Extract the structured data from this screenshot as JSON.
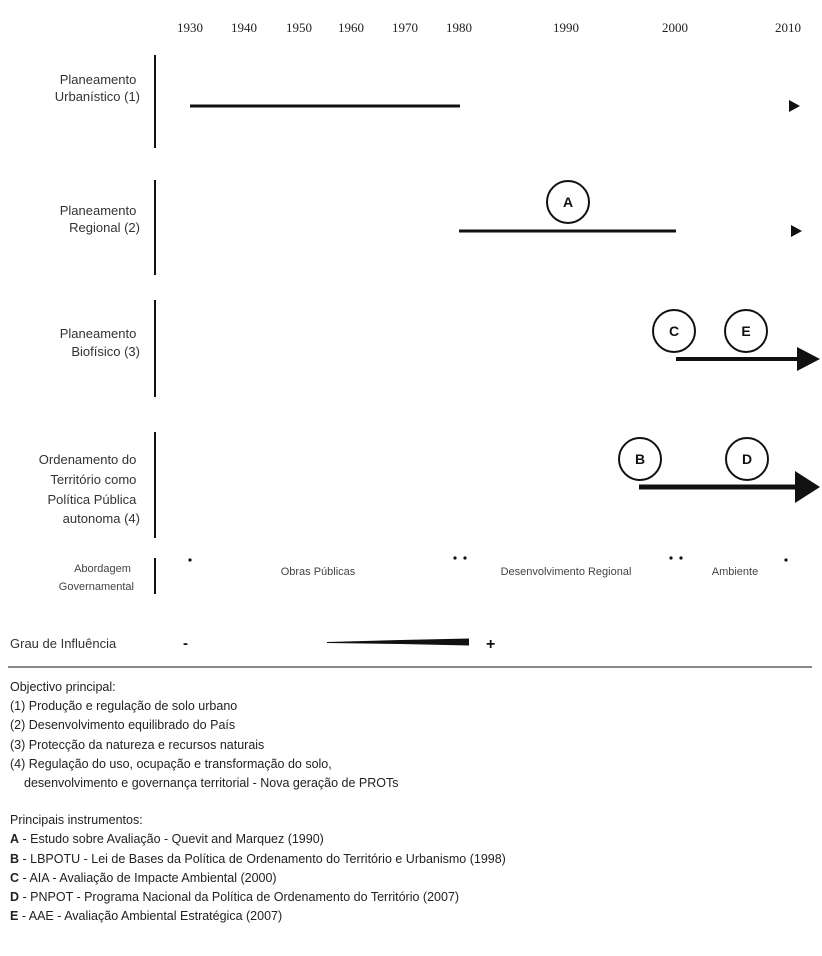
{
  "years": [
    "1930",
    "1940",
    "1950",
    "1960",
    "1970",
    "1980",
    "1990",
    "2000",
    "2010"
  ],
  "rows": [
    {
      "label_lines": [
        "Planeamento",
        "Urbanístico (1)"
      ]
    },
    {
      "label_lines": [
        "Planeamento",
        "Regional (2)"
      ]
    },
    {
      "label_lines": [
        "Planeamento",
        "Biofísico (3)"
      ]
    },
    {
      "label_lines": [
        "Ordenamento do",
        "Território como",
        "Política Pública",
        "autonoma (4)"
      ]
    }
  ],
  "circles": [
    "A",
    "C",
    "E",
    "B",
    "D"
  ],
  "governance": {
    "label_lines": [
      "Abordagem",
      "Governamental"
    ],
    "periods": [
      "Obras Públicas",
      "Desenvolvimento Regional",
      "Ambiente"
    ]
  },
  "influence": {
    "label": "Grau de Influência",
    "minus": "-",
    "plus": "+"
  },
  "objectives": {
    "title": "Objectivo principal:",
    "items": [
      "(1) Produção e regulação de solo urbano",
      "(2) Desenvolvimento equilibrado do País",
      "(3) Protecção da natureza e recursos naturais",
      "(4) Regulação do uso, ocupação e transformação do solo,"
    ],
    "continuation": "desenvolvimento e governança territorial - Nova geração de PROTs"
  },
  "instruments": {
    "title": "Principais instrumentos:",
    "items": [
      {
        "key": "A",
        "text": " - Estudo sobre Avaliação - Quevit and Marquez (1990)"
      },
      {
        "key": "B",
        "text": " - LBPOTU - Lei de Bases da Política de Ordenamento do Território e Urbanismo (1998)"
      },
      {
        "key": "C",
        "text": " - AIA - Avaliação de Impacte Ambiental (2000)"
      },
      {
        "key": "D",
        "text": " - PNPOT - Programa Nacional da Política de Ordenamento do Território (2007)"
      },
      {
        "key": "E",
        "text": " - AAE - Avaliação Ambiental Estratégica (2007)"
      }
    ]
  }
}
